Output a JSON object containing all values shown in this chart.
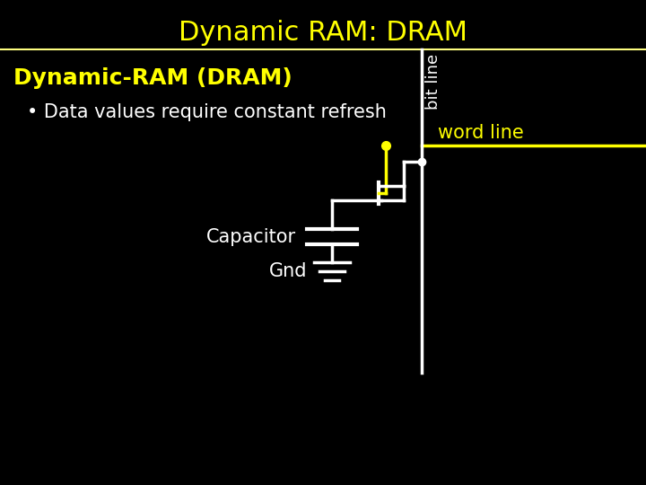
{
  "title": "Dynamic RAM: DRAM",
  "title_color": "#ffff00",
  "title_fontsize": 22,
  "bg_color": "#000000",
  "subtitle": "Dynamic-RAM (DRAM)",
  "subtitle_color": "#ffff00",
  "subtitle_fontsize": 18,
  "bullet": "Data values require constant refresh",
  "bullet_color": "#ffffff",
  "bullet_fontsize": 15,
  "bit_line_label": "bit line",
  "bit_line_color": "#ffffff",
  "word_line_label": "word line",
  "word_line_color": "#ffff00",
  "capacitor_label": "Capacitor",
  "gnd_label": "Gnd",
  "circuit_color": "#ffffff",
  "separator_color": "#ffff80",
  "figsize": [
    7.2,
    5.4
  ],
  "dpi": 100
}
